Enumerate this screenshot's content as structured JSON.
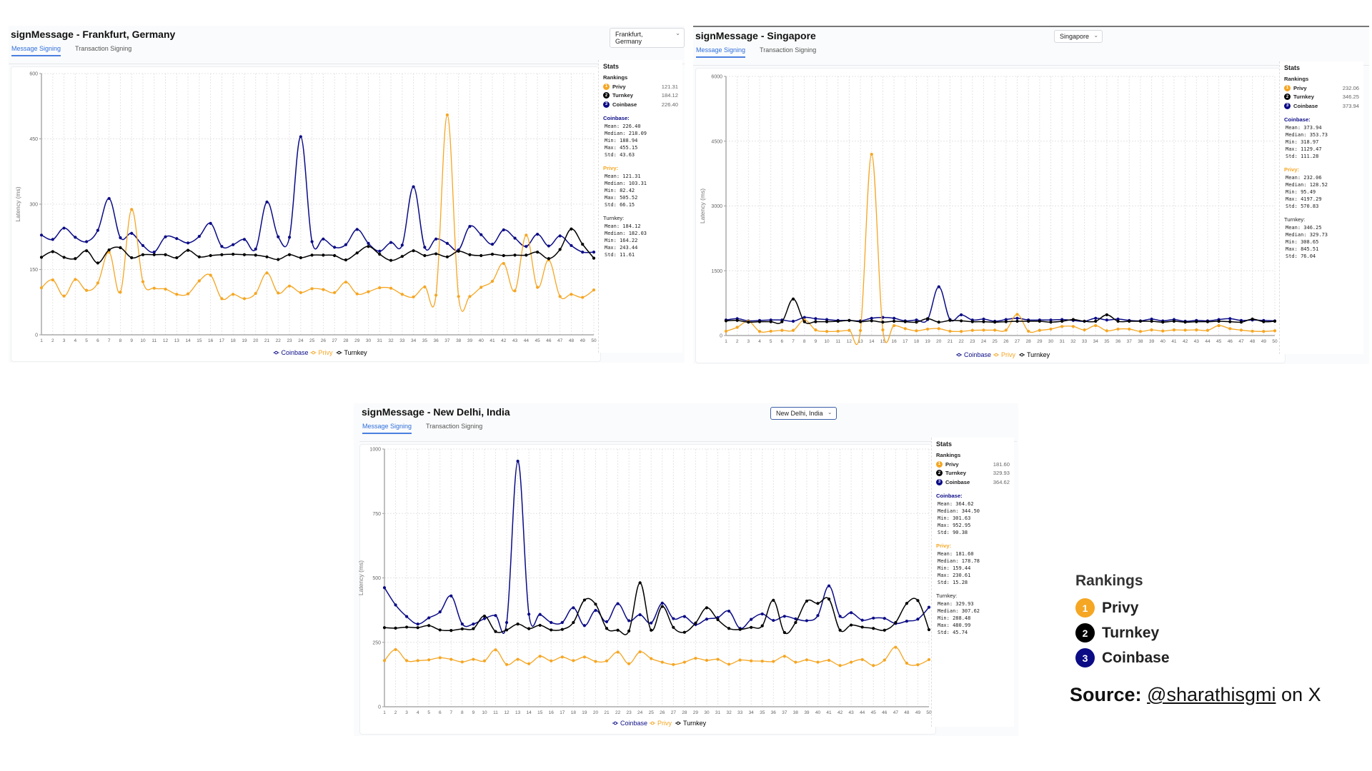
{
  "colors": {
    "Coinbase": "#0b0b86",
    "Privy": "#f5a623",
    "Turnkey": "#000000"
  },
  "tabs": [
    "Message Signing",
    "Transaction Signing"
  ],
  "stats_labels": {
    "title": "Stats",
    "rankings": "Rankings"
  },
  "panels": [
    {
      "title": "signMessage - Frankfurt, Germany",
      "dropdown": "Frankfurt, Germany",
      "rankings": [
        {
          "rank": "1",
          "name": "Privy",
          "value": "121.31"
        },
        {
          "rank": "2",
          "name": "Turnkey",
          "value": "184.12"
        },
        {
          "rank": "3",
          "name": "Coinbase",
          "value": "226.40"
        }
      ],
      "stats": [
        {
          "name": "Coinbase:",
          "lines": [
            "Mean: 226.40",
            "Median: 218.09",
            "Min: 188.94",
            "Max: 455.15",
            "Std: 43.63"
          ]
        },
        {
          "name": "Privy:",
          "lines": [
            "Mean: 121.31",
            "Median: 103.31",
            "Min: 82.42",
            "Max: 505.52",
            "Std: 66.15"
          ]
        },
        {
          "name": "Turnkey:",
          "lines": [
            "Mean: 184.12",
            "Median: 182.03",
            "Min: 164.22",
            "Max: 243.44",
            "Std: 11.61"
          ]
        }
      ]
    },
    {
      "title": "signMessage - Singapore",
      "dropdown": "Singapore",
      "rankings": [
        {
          "rank": "1",
          "name": "Privy",
          "value": "232.06"
        },
        {
          "rank": "2",
          "name": "Turnkey",
          "value": "346.25"
        },
        {
          "rank": "3",
          "name": "Coinbase",
          "value": "373.94"
        }
      ],
      "stats": [
        {
          "name": "Coinbase:",
          "lines": [
            "Mean: 373.94",
            "Median: 353.73",
            "Min: 318.97",
            "Max: 1129.47",
            "Std: 111.28"
          ]
        },
        {
          "name": "Privy:",
          "lines": [
            "Mean: 232.06",
            "Median: 128.52",
            "Min: 95.49",
            "Max: 4197.29",
            "Std: 570.83"
          ]
        },
        {
          "name": "Turnkey:",
          "lines": [
            "Mean: 346.25",
            "Median: 329.73",
            "Min: 308.65",
            "Max: 845.51",
            "Std: 76.04"
          ]
        }
      ]
    },
    {
      "title": "signMessage - New Delhi, India",
      "dropdown": "New Delhi, India",
      "rankings": [
        {
          "rank": "1",
          "name": "Privy",
          "value": "181.60"
        },
        {
          "rank": "2",
          "name": "Turnkey",
          "value": "329.93"
        },
        {
          "rank": "3",
          "name": "Coinbase",
          "value": "364.62"
        }
      ],
      "stats": [
        {
          "name": "Coinbase:",
          "lines": [
            "Mean: 364.62",
            "Median: 344.50",
            "Min: 301.63",
            "Max: 952.95",
            "Std: 90.38"
          ]
        },
        {
          "name": "Privy:",
          "lines": [
            "Mean: 181.60",
            "Median: 178.78",
            "Min: 159.44",
            "Max: 230.61",
            "Std: 15.28"
          ]
        },
        {
          "name": "Turnkey:",
          "lines": [
            "Mean: 329.93",
            "Median: 307.62",
            "Min: 288.48",
            "Max: 480.99",
            "Std: 45.74"
          ]
        }
      ]
    }
  ],
  "chart_data": [
    {
      "type": "line",
      "title": "signMessage - Frankfurt, Germany",
      "xlabel": "",
      "ylabel": "Latency (ms)",
      "ylim": [
        0,
        600
      ],
      "yticks": [
        0,
        150,
        300,
        450,
        600
      ],
      "x": "1-50",
      "grid": true,
      "legend": "bottom",
      "series": [
        {
          "name": "Coinbase",
          "values": [
            229,
            219,
            245,
            224,
            214,
            240,
            313,
            223,
            233,
            205,
            190,
            225,
            221,
            211,
            226,
            256,
            203,
            207,
            219,
            197,
            305,
            225,
            224,
            455,
            214,
            220,
            201,
            207,
            242,
            210,
            192,
            212,
            206,
            340,
            201,
            220,
            210,
            195,
            249,
            230,
            208,
            241,
            222,
            203,
            231,
            204,
            227,
            205,
            190,
            190
          ]
        },
        {
          "name": "Privy",
          "values": [
            108,
            126,
            89,
            127,
            102,
            119,
            190,
            98,
            288,
            122,
            107,
            105,
            93,
            94,
            124,
            137,
            83,
            93,
            83,
            95,
            142,
            96,
            112,
            97,
            106,
            104,
            97,
            121,
            94,
            99,
            108,
            107,
            93,
            87,
            110,
            91,
            505,
            88,
            88,
            109,
            123,
            164,
            101,
            229,
            109,
            172,
            88,
            93,
            86,
            103
          ]
        },
        {
          "name": "Turnkey",
          "values": [
            178,
            191,
            178,
            175,
            193,
            165,
            195,
            200,
            177,
            184,
            184,
            184,
            177,
            194,
            179,
            182,
            184,
            185,
            184,
            183,
            179,
            173,
            184,
            177,
            183,
            183,
            182,
            172,
            188,
            203,
            185,
            171,
            180,
            193,
            182,
            186,
            179,
            192,
            184,
            182,
            185,
            182,
            183,
            183,
            190,
            175,
            196,
            243,
            208,
            176
          ]
        }
      ]
    },
    {
      "type": "line",
      "title": "signMessage - Singapore",
      "xlabel": "",
      "ylabel": "Latency (ms)",
      "ylim": [
        0,
        6000
      ],
      "yticks": [
        0,
        1500,
        3000,
        4500,
        6000
      ],
      "x": "1-50",
      "grid": true,
      "legend": "bottom",
      "series": [
        {
          "name": "Coinbase",
          "values": [
            360,
            390,
            340,
            350,
            360,
            360,
            330,
            420,
            390,
            370,
            350,
            350,
            340,
            400,
            420,
            400,
            340,
            360,
            370,
            1129,
            370,
            480,
            360,
            380,
            330,
            370,
            400,
            360,
            360,
            360,
            370,
            350,
            330,
            400,
            360,
            380,
            350,
            340,
            380,
            340,
            370,
            330,
            350,
            340,
            370,
            390,
            350,
            360,
            350,
            340
          ]
        },
        {
          "name": "Privy",
          "values": [
            100,
            190,
            330,
            95,
            100,
            120,
            120,
            360,
            130,
            95,
            100,
            120,
            115,
            4197,
            130,
            230,
            160,
            110,
            150,
            160,
            100,
            95,
            120,
            125,
            125,
            125,
            490,
            100,
            120,
            150,
            210,
            210,
            130,
            230,
            110,
            150,
            150,
            95,
            130,
            105,
            130,
            125,
            130,
            120,
            230,
            160,
            125,
            100,
            95,
            110
          ]
        },
        {
          "name": "Turnkey",
          "values": [
            340,
            350,
            310,
            320,
            320,
            320,
            845,
            320,
            320,
            320,
            330,
            350,
            320,
            340,
            310,
            330,
            320,
            310,
            390,
            310,
            350,
            340,
            320,
            320,
            310,
            320,
            330,
            330,
            330,
            310,
            330,
            370,
            330,
            330,
            480,
            330,
            330,
            330,
            330,
            310,
            330,
            310,
            320,
            320,
            330,
            320,
            310,
            380,
            320,
            330
          ]
        }
      ]
    },
    {
      "type": "line",
      "title": "signMessage - New Delhi, India",
      "xlabel": "",
      "ylabel": "Latency (ms)",
      "ylim": [
        0,
        1000
      ],
      "yticks": [
        0,
        250,
        500,
        750,
        1000
      ],
      "x": "1-50",
      "grid": true,
      "legend": "bottom",
      "series": [
        {
          "name": "Coinbase",
          "values": [
            462,
            395,
            350,
            321,
            345,
            368,
            430,
            321,
            321,
            342,
            354,
            327,
            953,
            359,
            358,
            327,
            327,
            384,
            315,
            374,
            330,
            400,
            334,
            357,
            325,
            402,
            342,
            350,
            319,
            340,
            346,
            371,
            304,
            339,
            360,
            335,
            351,
            341,
            334,
            354,
            469,
            351,
            365,
            336,
            344,
            343,
            323,
            332,
            340,
            386
          ]
        },
        {
          "name": "Privy",
          "values": [
            179,
            222,
            179,
            179,
            182,
            190,
            184,
            174,
            184,
            178,
            221,
            164,
            184,
            167,
            196,
            178,
            193,
            179,
            193,
            176,
            178,
            212,
            167,
            213,
            187,
            173,
            164,
            173,
            188,
            180,
            184,
            165,
            181,
            178,
            177,
            176,
            196,
            173,
            182,
            173,
            180,
            160,
            173,
            183,
            160,
            181,
            231,
            169,
            163,
            183
          ]
        },
        {
          "name": "Turnkey",
          "values": [
            307,
            305,
            309,
            307,
            315,
            298,
            296,
            302,
            303,
            352,
            292,
            298,
            321,
            303,
            316,
            298,
            300,
            327,
            414,
            398,
            304,
            297,
            294,
            481,
            297,
            389,
            308,
            289,
            325,
            384,
            338,
            304,
            300,
            308,
            314,
            413,
            288,
            327,
            410,
            401,
            418,
            297,
            317,
            309,
            304,
            297,
            327,
            401,
            412,
            299
          ]
        }
      ]
    }
  ],
  "summary": {
    "rankings_title": "Rankings",
    "items": [
      {
        "rank": "1",
        "name": "Privy"
      },
      {
        "rank": "2",
        "name": "Turnkey"
      },
      {
        "rank": "3",
        "name": "Coinbase"
      }
    ]
  },
  "source": {
    "label": "Source:",
    "handle": "@sharathisgmi",
    "suffix": "on X"
  }
}
